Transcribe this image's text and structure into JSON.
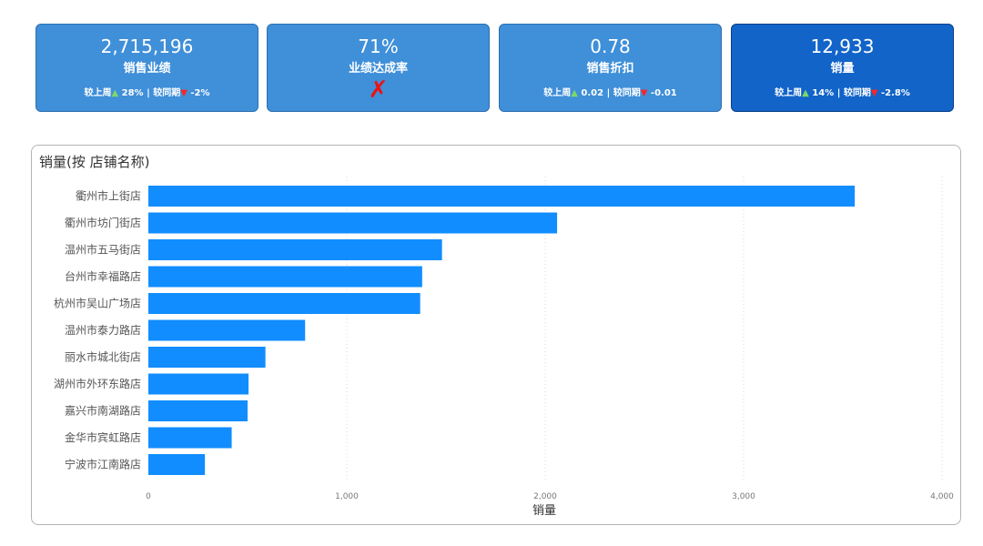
{
  "kpis": [
    {
      "value": "2,715,196",
      "label": "销售业绩",
      "wow_label": "较上周",
      "wow_value": "28%",
      "sep": "|",
      "yoy_label": "较同期",
      "yoy_value": "-2%"
    },
    {
      "value": "71%",
      "label": "业绩达成率",
      "mark": "✗"
    },
    {
      "value": "0.78",
      "label": "销售折扣",
      "wow_label": "较上周",
      "wow_value": "0.02",
      "sep": "|",
      "yoy_label": "较同期",
      "yoy_value": "-0.01"
    },
    {
      "value": "12,933",
      "label": "销量",
      "wow_label": "较上周",
      "wow_value": "14%",
      "sep": "|",
      "yoy_label": "较同期",
      "yoy_value": "-2.8%"
    }
  ],
  "colors": {
    "bar": "#118dff",
    "kpi": "#3f8fd9",
    "kpi_active": "#1264c9",
    "up": "#7bd86a",
    "down": "#ff2424"
  },
  "chart_data": {
    "type": "bar",
    "orientation": "horizontal",
    "title": "销量(按 店铺名称)",
    "xlabel": "销量",
    "ylabel": "",
    "xlim": [
      0,
      4000
    ],
    "xticks": [
      0,
      1000,
      2000,
      3000,
      4000
    ],
    "xtick_labels": [
      "0",
      "1,000",
      "2,000",
      "3,000",
      "4,000"
    ],
    "grid": true,
    "categories": [
      "衢州市上街店",
      "衢州市坊门街店",
      "温州市五马街店",
      "台州市幸福路店",
      "杭州市吴山广场店",
      "温州市泰力路店",
      "丽水市城北街店",
      "湖州市外环东路店",
      "嘉兴市南湖路店",
      "金华市宾虹路店",
      "宁波市江南路店"
    ],
    "values": [
      3560,
      2060,
      1480,
      1380,
      1370,
      790,
      590,
      505,
      500,
      420,
      285
    ]
  }
}
